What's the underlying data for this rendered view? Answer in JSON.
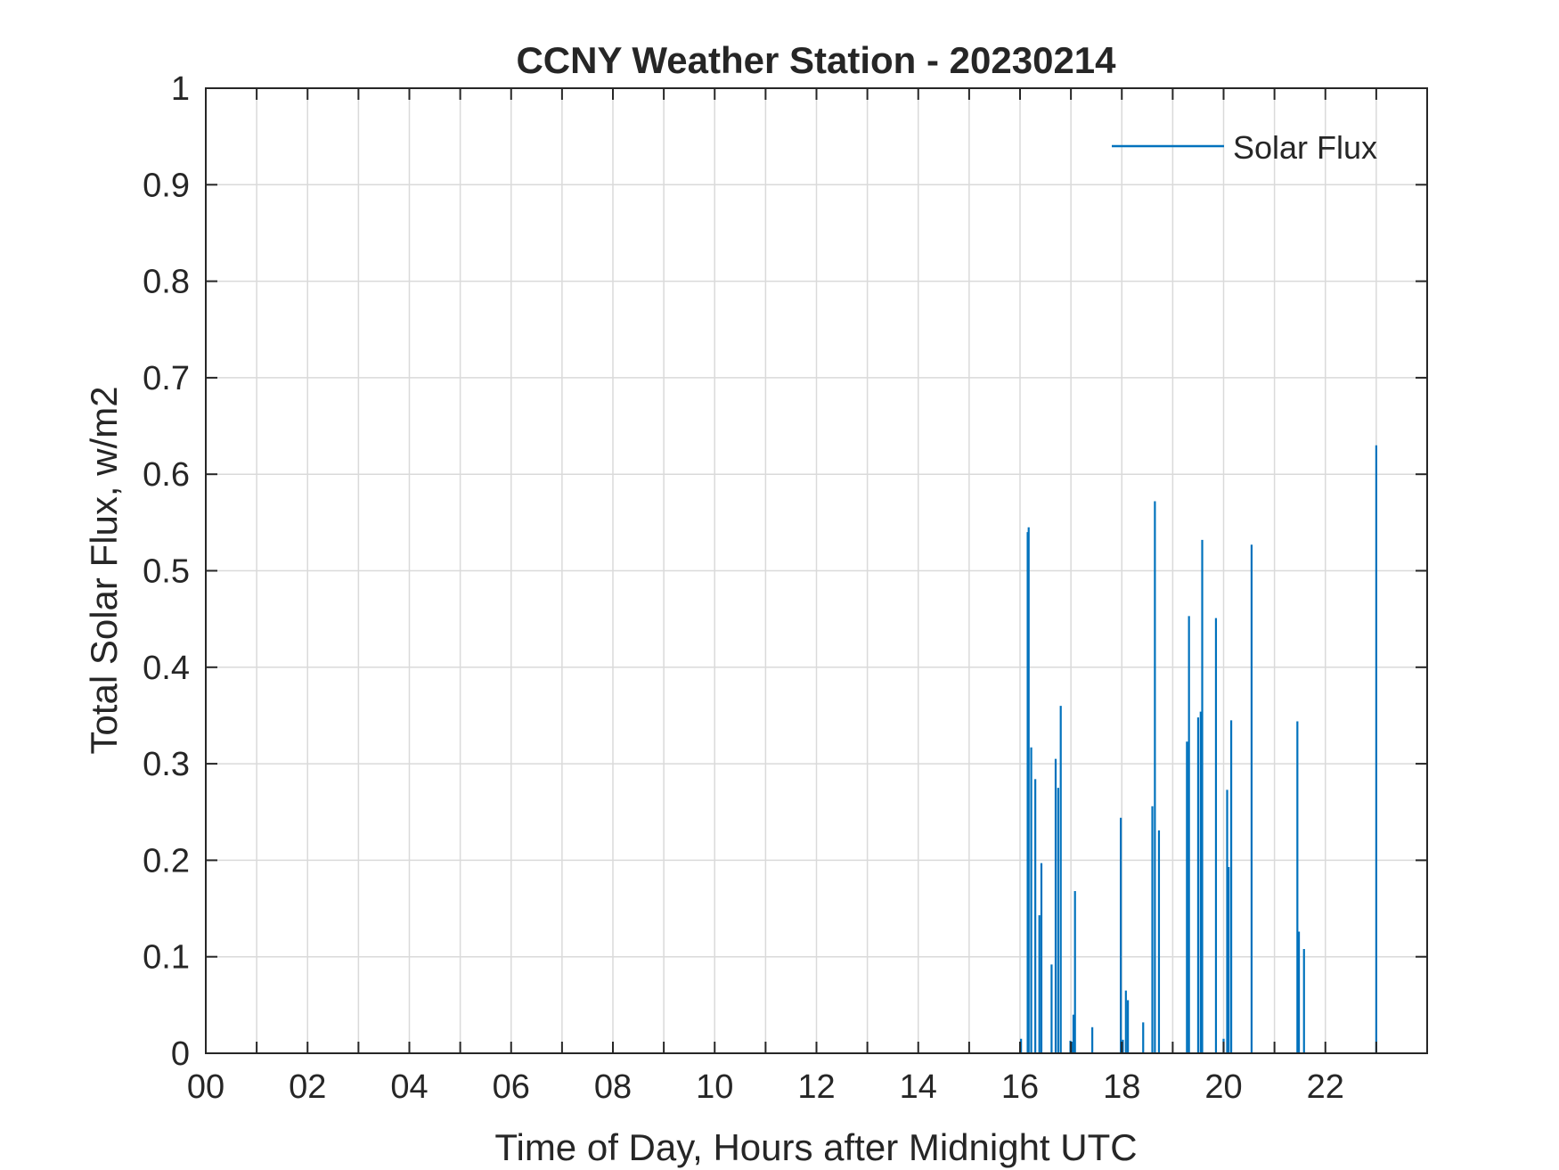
{
  "colors": {
    "series": "#0072BD",
    "axis": "#262626",
    "grid": "#dadada",
    "background": "#ffffff"
  },
  "chart_data": {
    "type": "line",
    "title": "CCNY Weather Station - 20230214",
    "xlabel": "Time of Day, Hours after Midnight UTC",
    "ylabel": "Total Solar Flux, w/m2",
    "xlim": [
      0,
      24
    ],
    "ylim": [
      0,
      1
    ],
    "grid": true,
    "legend": {
      "location": "top-right",
      "entries": [
        "Solar Flux"
      ]
    },
    "xticks": [
      0,
      2,
      4,
      6,
      8,
      10,
      12,
      14,
      16,
      18,
      20,
      22
    ],
    "xtick_labels": [
      "00",
      "02",
      "04",
      "06",
      "08",
      "10",
      "12",
      "14",
      "16",
      "18",
      "20",
      "22"
    ],
    "yticks": [
      0,
      0.1,
      0.2,
      0.3,
      0.4,
      0.5,
      0.6,
      0.7,
      0.8,
      0.9,
      1
    ],
    "ytick_labels": [
      "0",
      "0.1",
      "0.2",
      "0.3",
      "0.4",
      "0.5",
      "0.6",
      "0.7",
      "0.8",
      "0.9",
      "1"
    ],
    "series": [
      {
        "name": "Solar Flux",
        "x": [
          16.02,
          16.15,
          16.17,
          16.22,
          16.3,
          16.38,
          16.42,
          16.45,
          16.62,
          16.7,
          16.75,
          16.8,
          16.99,
          17.02,
          17.05,
          17.08,
          17.42,
          17.98,
          18.02,
          18.08,
          18.12,
          18.42,
          18.6,
          18.65,
          18.73,
          19.28,
          19.32,
          19.5,
          19.55,
          19.58,
          19.85,
          19.92,
          20.0,
          20.07,
          20.1,
          20.15,
          20.3,
          20.55,
          21.45,
          21.48,
          21.58,
          23.0
        ],
        "y": [
          0.015,
          0.54,
          0.545,
          0.317,
          0.284,
          0.143,
          0.197,
          0.0,
          0.092,
          0.305,
          0.275,
          0.36,
          0.013,
          0.012,
          0.04,
          0.168,
          0.027,
          0.244,
          0.014,
          0.065,
          0.055,
          0.032,
          0.256,
          0.572,
          0.231,
          0.323,
          0.453,
          0.348,
          0.354,
          0.532,
          0.451,
          0.0,
          0.015,
          0.273,
          0.193,
          0.345,
          0.0,
          0.527,
          0.344,
          0.126,
          0.108,
          0.63
        ]
      }
    ]
  }
}
